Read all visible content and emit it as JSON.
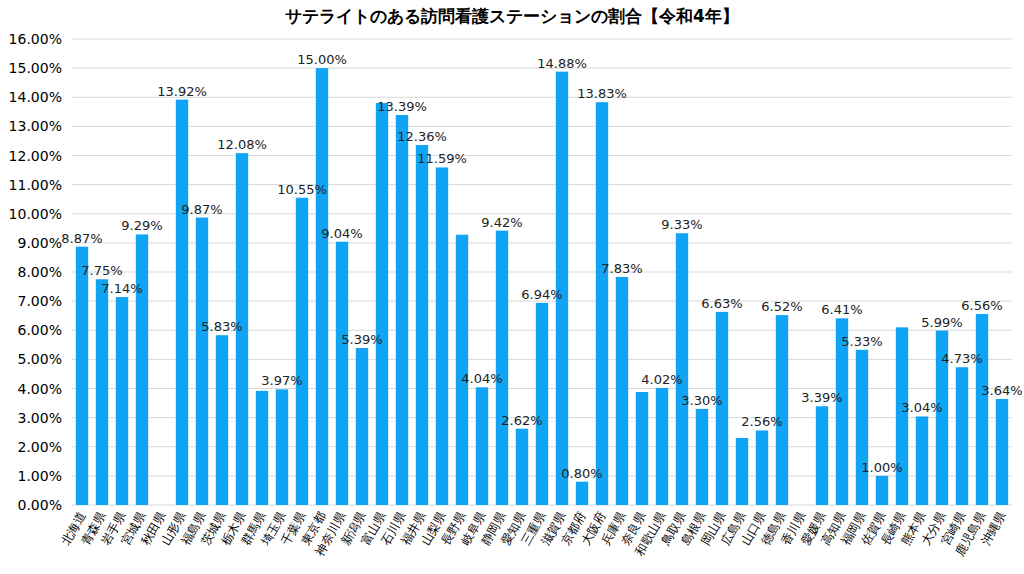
{
  "chart_data": {
    "type": "bar",
    "title": "サテライトのある訪問看護ステーションの割合【令和4年】",
    "categories": [
      "北海道",
      "青森県",
      "岩手県",
      "宮城県",
      "秋田県",
      "山形県",
      "福島県",
      "茨城県",
      "栃木県",
      "群馬県",
      "埼玉県",
      "千葉県",
      "東京都",
      "神奈川県",
      "新潟県",
      "富山県",
      "石川県",
      "福井県",
      "山梨県",
      "長野県",
      "岐阜県",
      "静岡県",
      "愛知県",
      "三重県",
      "滋賀県",
      "京都府",
      "大阪府",
      "兵庫県",
      "奈良県",
      "和歌山県",
      "鳥取県",
      "島根県",
      "岡山県",
      "広島県",
      "山口県",
      "徳島県",
      "香川県",
      "愛媛県",
      "高知県",
      "福岡県",
      "佐賀県",
      "長崎県",
      "熊本県",
      "大分県",
      "宮崎県",
      "鹿児島県",
      "沖縄県"
    ],
    "values": [
      8.87,
      7.75,
      7.14,
      9.29,
      0,
      13.92,
      9.87,
      5.83,
      12.08,
      3.92,
      3.97,
      10.55,
      15.0,
      9.04,
      5.39,
      13.8,
      13.39,
      12.36,
      11.59,
      9.28,
      4.04,
      9.42,
      2.62,
      6.94,
      14.88,
      0.8,
      13.83,
      7.83,
      3.88,
      4.02,
      9.33,
      3.3,
      6.63,
      2.3,
      2.56,
      6.52,
      0,
      3.39,
      6.41,
      5.33,
      1.0,
      6.1,
      3.04,
      5.99,
      4.73,
      6.56,
      3.64
    ],
    "value_labels": [
      "8.87%",
      "7.75%",
      "7.14%",
      "9.29%",
      null,
      "13.92%",
      "9.87%",
      "5.83%",
      "12.08%",
      null,
      "3.97%",
      "10.55%",
      "15.00%",
      "9.04%",
      "5.39%",
      null,
      "13.39%",
      "12.36%",
      "11.59%",
      null,
      "4.04%",
      "9.42%",
      "2.62%",
      "6.94%",
      "14.88%",
      "0.80%",
      "13.83%",
      "7.83%",
      null,
      "4.02%",
      "9.33%",
      "3.30%",
      "6.63%",
      null,
      "2.56%",
      "6.52%",
      null,
      "3.39%",
      "6.41%",
      "5.33%",
      "1.00%",
      null,
      "3.04%",
      "5.99%",
      "4.73%",
      "6.56%",
      "3.64%"
    ],
    "color": "#12a4f4",
    "ylim": [
      0,
      16
    ],
    "yticks": [
      {
        "value": 0,
        "label": "0.00%"
      },
      {
        "value": 1,
        "label": "1.00%"
      },
      {
        "value": 2,
        "label": "2.00%"
      },
      {
        "value": 3,
        "label": "3.00%"
      },
      {
        "value": 4,
        "label": "4.00%"
      },
      {
        "value": 5,
        "label": "5.00%"
      },
      {
        "value": 6,
        "label": "6.00%"
      },
      {
        "value": 7,
        "label": "7.00%"
      },
      {
        "value": 8,
        "label": "8.00%"
      },
      {
        "value": 9,
        "label": "9.00%"
      },
      {
        "value": 10,
        "label": "10.00%"
      },
      {
        "value": 11,
        "label": "11.00%"
      },
      {
        "value": 12,
        "label": "12.00%"
      },
      {
        "value": 13,
        "label": "13.00%"
      },
      {
        "value": 14,
        "label": "14.00%"
      },
      {
        "value": 15,
        "label": "15.00%"
      },
      {
        "value": 16,
        "label": "16.00%"
      }
    ],
    "grid": true,
    "data_labels": true
  }
}
